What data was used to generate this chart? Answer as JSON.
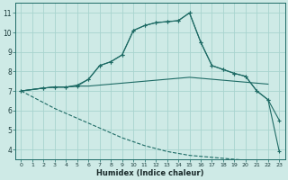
{
  "xlabel": "Humidex (Indice chaleur)",
  "xlim": [
    -0.5,
    23.5
  ],
  "ylim": [
    3.5,
    11.5
  ],
  "xticks": [
    0,
    1,
    2,
    3,
    4,
    5,
    6,
    7,
    8,
    9,
    10,
    11,
    12,
    13,
    14,
    15,
    16,
    17,
    18,
    19,
    20,
    21,
    22,
    23
  ],
  "yticks": [
    4,
    5,
    6,
    7,
    8,
    9,
    10,
    11
  ],
  "bg_color": "#ceeae6",
  "grid_color": "#a8d4cf",
  "line_color": "#1e6b65",
  "line1_x": [
    0,
    1,
    2,
    3,
    4,
    5,
    6,
    7,
    8,
    9,
    10,
    11,
    12,
    13,
    14,
    15,
    16,
    17,
    18,
    19,
    20,
    21,
    22,
    23
  ],
  "line1_y": [
    7.0,
    6.7,
    6.4,
    6.1,
    5.85,
    5.6,
    5.35,
    5.1,
    4.85,
    4.6,
    4.4,
    4.2,
    4.05,
    3.9,
    3.8,
    3.7,
    3.65,
    3.6,
    3.55,
    3.5,
    3.45,
    3.42,
    3.4,
    3.38
  ],
  "line2_x": [
    0,
    2,
    3,
    4,
    5,
    6,
    7,
    8,
    9,
    10,
    11,
    12,
    13,
    14,
    15,
    16,
    17,
    18,
    19,
    20,
    21,
    22
  ],
  "line2_y": [
    7.0,
    7.15,
    7.2,
    7.2,
    7.25,
    7.25,
    7.3,
    7.35,
    7.4,
    7.45,
    7.5,
    7.55,
    7.6,
    7.65,
    7.7,
    7.65,
    7.6,
    7.55,
    7.5,
    7.45,
    7.4,
    7.35
  ],
  "line3_x": [
    0,
    2,
    3,
    4,
    5,
    6,
    7,
    8,
    9,
    10,
    11,
    12,
    13,
    14,
    15,
    16,
    17,
    18,
    19,
    20,
    21,
    22,
    23
  ],
  "line3_y": [
    7.0,
    7.15,
    7.2,
    7.2,
    7.3,
    7.6,
    8.3,
    8.5,
    8.85,
    10.1,
    10.35,
    10.5,
    10.55,
    10.6,
    11.0,
    9.5,
    8.3,
    8.1,
    7.9,
    7.75,
    7.0,
    6.55,
    5.5
  ],
  "line4_x": [
    0,
    2,
    3,
    4,
    5,
    6,
    7,
    8,
    9,
    10,
    11,
    12,
    13,
    14,
    15,
    16,
    17,
    18,
    19,
    20,
    21,
    22,
    23
  ],
  "line4_y": [
    7.0,
    7.15,
    7.2,
    7.2,
    7.25,
    7.6,
    8.3,
    8.5,
    8.85,
    10.1,
    10.35,
    10.5,
    10.55,
    10.6,
    11.0,
    9.5,
    8.3,
    8.1,
    7.9,
    7.75,
    7.0,
    6.55,
    3.9
  ],
  "fig_width": 3.2,
  "fig_height": 2.0,
  "dpi": 100
}
